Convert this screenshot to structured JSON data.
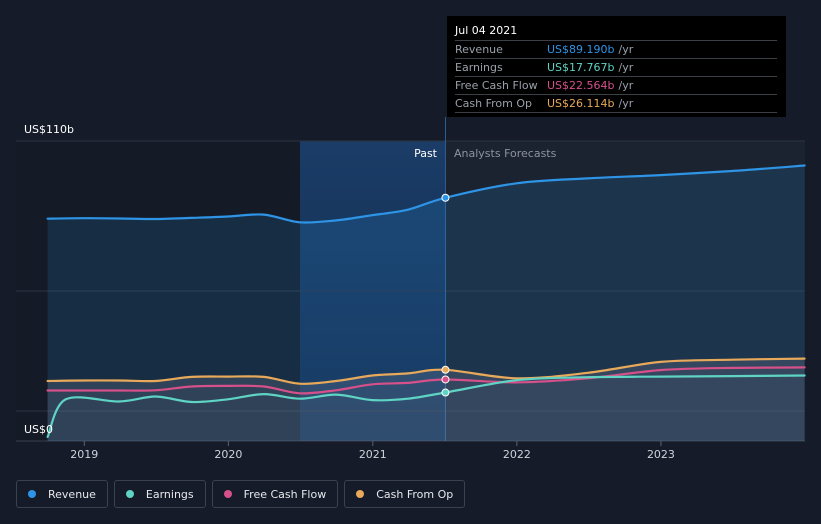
{
  "chart_data": {
    "type": "line",
    "ylabel_top": "US$110b",
    "ylabel_bottom": "US$0",
    "ylim": [
      0,
      110
    ],
    "x_ticks": [
      "2019",
      "2020",
      "2021",
      "2022",
      "2023"
    ],
    "past_label": "Past",
    "forecast_label": "Analysts Forecasts",
    "divider_date": "2021-07-04",
    "series": [
      {
        "name": "Revenue",
        "color": "#2e94e6",
        "points": [
          [
            "2018-09-30",
            81.5
          ],
          [
            "2018-12-31",
            81.7
          ],
          [
            "2019-03-31",
            81.6
          ],
          [
            "2019-06-30",
            81.4
          ],
          [
            "2019-09-30",
            81.8
          ],
          [
            "2019-12-31",
            82.3
          ],
          [
            "2020-03-31",
            83.0
          ],
          [
            "2020-06-30",
            80.2
          ],
          [
            "2020-09-30",
            80.9
          ],
          [
            "2020-12-31",
            82.8
          ],
          [
            "2021-03-31",
            84.8
          ],
          [
            "2021-07-04",
            89.19
          ],
          [
            "2021-12-31",
            94.5
          ],
          [
            "2022-06-30",
            96.3
          ],
          [
            "2022-12-31",
            97.5
          ],
          [
            "2023-06-30",
            99.0
          ],
          [
            "2023-12-31",
            101.0
          ]
        ]
      },
      {
        "name": "Earnings",
        "color": "#5fd3c4",
        "points": [
          [
            "2018-09-30",
            1.5
          ],
          [
            "2018-11-15",
            15.3
          ],
          [
            "2019-03-31",
            14.5
          ],
          [
            "2019-06-30",
            16.3
          ],
          [
            "2019-09-30",
            14.3
          ],
          [
            "2019-12-31",
            15.3
          ],
          [
            "2020-03-31",
            17.2
          ],
          [
            "2020-06-30",
            15.5
          ],
          [
            "2020-09-30",
            17.0
          ],
          [
            "2020-12-31",
            15.0
          ],
          [
            "2021-03-31",
            15.5
          ],
          [
            "2021-07-04",
            17.767
          ],
          [
            "2021-12-31",
            22.3
          ],
          [
            "2022-06-30",
            23.4
          ],
          [
            "2022-12-31",
            23.6
          ],
          [
            "2023-06-30",
            23.8
          ],
          [
            "2023-12-31",
            24.0
          ]
        ]
      },
      {
        "name": "Free Cash Flow",
        "color": "#d6508a",
        "points": [
          [
            "2018-09-30",
            18.5
          ],
          [
            "2018-12-31",
            18.5
          ],
          [
            "2019-03-31",
            18.5
          ],
          [
            "2019-06-30",
            18.6
          ],
          [
            "2019-09-30",
            20.0
          ],
          [
            "2019-12-31",
            20.2
          ],
          [
            "2020-03-31",
            20.0
          ],
          [
            "2020-06-30",
            17.5
          ],
          [
            "2020-09-30",
            18.6
          ],
          [
            "2020-12-31",
            20.8
          ],
          [
            "2021-03-31",
            21.3
          ],
          [
            "2021-07-04",
            22.564
          ],
          [
            "2021-12-31",
            21.5
          ],
          [
            "2022-06-30",
            23.0
          ],
          [
            "2022-12-31",
            26.0
          ],
          [
            "2023-06-30",
            26.8
          ],
          [
            "2023-12-31",
            27.0
          ]
        ]
      },
      {
        "name": "Cash From Op",
        "color": "#e8a95a",
        "points": [
          [
            "2018-09-30",
            22.0
          ],
          [
            "2018-12-31",
            22.2
          ],
          [
            "2019-03-31",
            22.2
          ],
          [
            "2019-06-30",
            22.0
          ],
          [
            "2019-09-30",
            23.5
          ],
          [
            "2019-12-31",
            23.6
          ],
          [
            "2020-03-31",
            23.5
          ],
          [
            "2020-06-30",
            21.0
          ],
          [
            "2020-09-30",
            22.0
          ],
          [
            "2020-12-31",
            24.0
          ],
          [
            "2021-03-31",
            24.8
          ],
          [
            "2021-07-04",
            26.114
          ],
          [
            "2021-12-31",
            23.0
          ],
          [
            "2022-06-30",
            25.0
          ],
          [
            "2022-12-31",
            29.0
          ],
          [
            "2023-06-30",
            29.8
          ],
          [
            "2023-12-31",
            30.2
          ]
        ]
      }
    ]
  },
  "tooltip": {
    "date": "Jul 04 2021",
    "unit": "/yr",
    "rows": [
      {
        "label": "Revenue",
        "value": "US$89.190b",
        "color": "#2e94e6"
      },
      {
        "label": "Earnings",
        "value": "US$17.767b",
        "color": "#5fd3c4"
      },
      {
        "label": "Free Cash Flow",
        "value": "US$22.564b",
        "color": "#d6508a"
      },
      {
        "label": "Cash From Op",
        "value": "US$26.114b",
        "color": "#e8a95a"
      }
    ]
  },
  "legend": [
    {
      "label": "Revenue",
      "color": "#2e94e6"
    },
    {
      "label": "Earnings",
      "color": "#5fd3c4"
    },
    {
      "label": "Free Cash Flow",
      "color": "#d6508a"
    },
    {
      "label": "Cash From Op",
      "color": "#e8a95a"
    }
  ]
}
